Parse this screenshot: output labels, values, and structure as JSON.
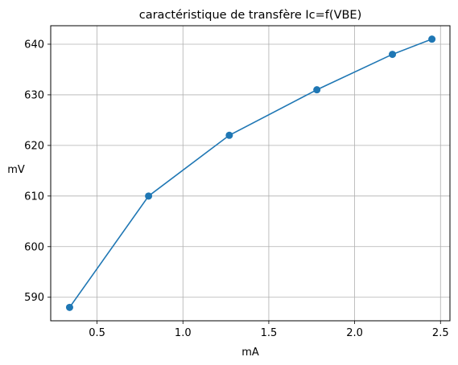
{
  "chart_data": {
    "type": "line",
    "title": "caractéristique de transfère Ic=f(VBE)",
    "xlabel": "mA",
    "ylabel": "mV",
    "xlim": [
      0.23,
      2.555
    ],
    "ylim": [
      585.35,
      643.65
    ],
    "xticks": [
      0.5,
      1.0,
      1.5,
      2.0,
      2.5
    ],
    "xtick_labels": [
      "0.5",
      "1.0",
      "1.5",
      "2.0",
      "2.5"
    ],
    "yticks": [
      590,
      600,
      610,
      620,
      630,
      640
    ],
    "ytick_labels": [
      "590",
      "600",
      "610",
      "620",
      "630",
      "640"
    ],
    "grid": true,
    "series": [
      {
        "x": [
          0.34,
          0.8,
          1.27,
          1.78,
          2.22,
          2.45
        ],
        "y": [
          588,
          610,
          622,
          631,
          638,
          641
        ],
        "color": "#1f77b4",
        "marker": "circle"
      }
    ]
  }
}
